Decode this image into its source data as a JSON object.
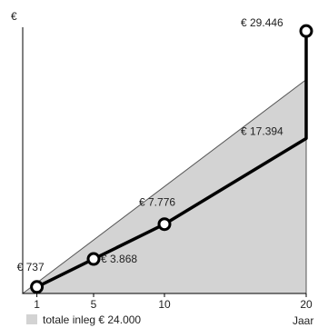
{
  "chart_data": {
    "type": "line",
    "x": [
      1,
      5,
      10,
      20
    ],
    "x_ticks": [
      "1",
      "5",
      "10",
      "20"
    ],
    "xlabel": "Jaar",
    "ylabel": "€",
    "xlim": [
      0,
      20
    ],
    "ylim": [
      0,
      31500
    ],
    "grid": false,
    "legend_position": "bottom-left",
    "area": {
      "name": "totale inleg € 24.000",
      "x": [
        0,
        20
      ],
      "values": [
        0,
        24000
      ],
      "color": "#d3d3d3"
    },
    "series": [
      {
        "color": "#000000",
        "points": [
          {
            "x": 1,
            "y": 737,
            "label": "€ 737"
          },
          {
            "x": 5,
            "y": 3868,
            "label": "€ 3.868"
          },
          {
            "x": 10,
            "y": 7776,
            "label": "€ 7.776"
          },
          {
            "x": 20,
            "y": 17394,
            "label": "€ 17.394"
          },
          {
            "x": 20,
            "y": 29446,
            "label": "€ 29.446"
          }
        ]
      }
    ]
  }
}
